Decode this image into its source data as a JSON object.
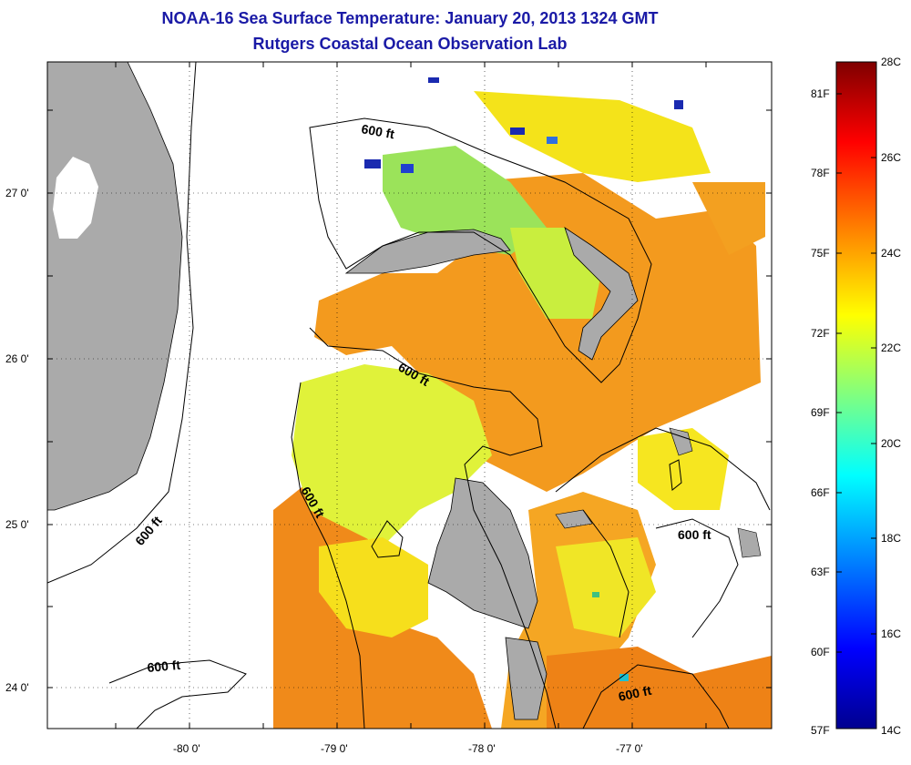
{
  "header": {
    "title": "NOAA-16 Sea Surface Temperature:  January 20, 2013 1324 GMT",
    "subtitle": "Rutgers Coastal Ocean Observation Lab"
  },
  "map": {
    "lon_labels": [
      "-80 0'",
      "-79 0'",
      "-78 0'",
      "-77 0'"
    ],
    "lat_labels": [
      "27 0'",
      "26 0'",
      "25 0'",
      "24 0'"
    ],
    "contour_labels": [
      "600 ft",
      "600 ft",
      "600 ft",
      "600 ft",
      "600 ft",
      "600 ft"
    ]
  },
  "colorbar": {
    "fahrenheit_labels": [
      "81F",
      "78F",
      "75F",
      "72F",
      "69F",
      "66F",
      "63F",
      "60F",
      "57F"
    ],
    "celsius_labels": [
      "28C",
      "26C",
      "24C",
      "22C",
      "20C",
      "18C",
      "16C",
      "14C"
    ],
    "colors": [
      "#7f0000",
      "#ff0000",
      "#ff8000",
      "#ffff00",
      "#80ff80",
      "#00ffff",
      "#0080ff",
      "#0000ff",
      "#00008f"
    ]
  }
}
